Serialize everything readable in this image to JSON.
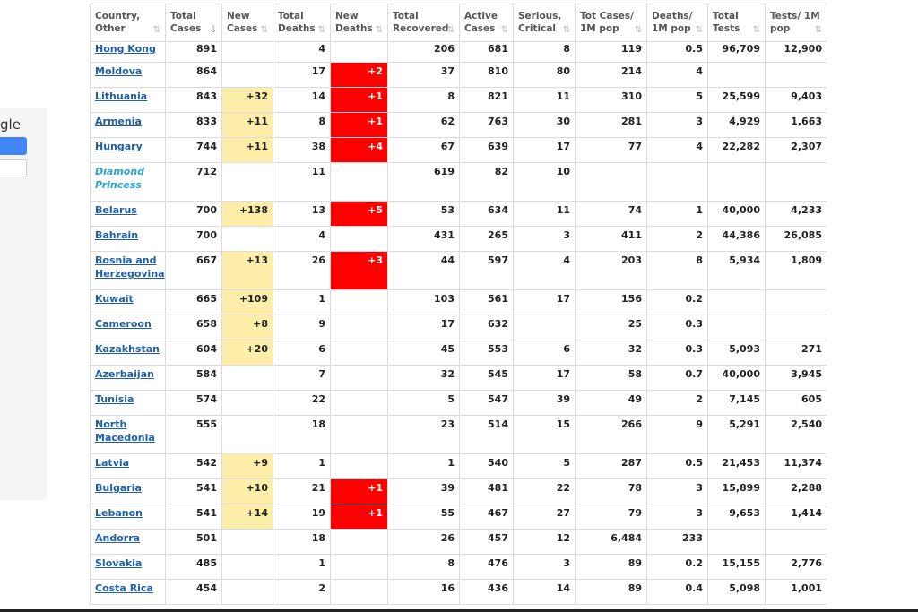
{
  "sidebar": {
    "partial_text": "gle"
  },
  "table": {
    "headers": [
      {
        "label": "Country, Other",
        "sort": "⇅"
      },
      {
        "label": "Total Cases",
        "sort": "⇩"
      },
      {
        "label": "New Cases",
        "sort": "⇅"
      },
      {
        "label": "Total Deaths",
        "sort": "⇅"
      },
      {
        "label": "New Deaths",
        "sort": "⇅"
      },
      {
        "label": "Total Recovered",
        "sort": "⇅"
      },
      {
        "label": "Active Cases",
        "sort": "⇅"
      },
      {
        "label": "Serious, Critical",
        "sort": "⇅"
      },
      {
        "label": "Tot Cases/ 1M pop",
        "sort": "⇅"
      },
      {
        "label": "Deaths/ 1M pop",
        "sort": "⇅"
      },
      {
        "label": "Total Tests",
        "sort": "⇅"
      },
      {
        "label": "Tests/ 1M pop",
        "sort": "⇅"
      }
    ],
    "rows": [
      {
        "country": "Hong Kong",
        "total_cases": "891",
        "new_cases": "",
        "total_deaths": "4",
        "new_deaths": "",
        "total_recovered": "206",
        "active_cases": "681",
        "serious": "8",
        "cases_per_m": "119",
        "deaths_per_m": "0.5",
        "total_tests": "96,709",
        "tests_per_m": "12,900"
      },
      {
        "country": "Moldova",
        "total_cases": "864",
        "new_cases": "",
        "total_deaths": "17",
        "new_deaths": "+2",
        "total_recovered": "37",
        "active_cases": "810",
        "serious": "80",
        "cases_per_m": "214",
        "deaths_per_m": "4",
        "total_tests": "",
        "tests_per_m": ""
      },
      {
        "country": "Lithuania",
        "total_cases": "843",
        "new_cases": "+32",
        "total_deaths": "14",
        "new_deaths": "+1",
        "total_recovered": "8",
        "active_cases": "821",
        "serious": "11",
        "cases_per_m": "310",
        "deaths_per_m": "5",
        "total_tests": "25,599",
        "tests_per_m": "9,403"
      },
      {
        "country": "Armenia",
        "total_cases": "833",
        "new_cases": "+11",
        "total_deaths": "8",
        "new_deaths": "+1",
        "total_recovered": "62",
        "active_cases": "763",
        "serious": "30",
        "cases_per_m": "281",
        "deaths_per_m": "3",
        "total_tests": "4,929",
        "tests_per_m": "1,663"
      },
      {
        "country": "Hungary",
        "total_cases": "744",
        "new_cases": "+11",
        "total_deaths": "38",
        "new_deaths": "+4",
        "total_recovered": "67",
        "active_cases": "639",
        "serious": "17",
        "cases_per_m": "77",
        "deaths_per_m": "4",
        "total_tests": "22,282",
        "tests_per_m": "2,307"
      },
      {
        "country": "Diamond Princess",
        "special": true,
        "total_cases": "712",
        "new_cases": "",
        "total_deaths": "11",
        "new_deaths": "",
        "total_recovered": "619",
        "active_cases": "82",
        "serious": "10",
        "cases_per_m": "",
        "deaths_per_m": "",
        "total_tests": "",
        "tests_per_m": ""
      },
      {
        "country": "Belarus",
        "total_cases": "700",
        "new_cases": "+138",
        "total_deaths": "13",
        "new_deaths": "+5",
        "total_recovered": "53",
        "active_cases": "634",
        "serious": "11",
        "cases_per_m": "74",
        "deaths_per_m": "1",
        "total_tests": "40,000",
        "tests_per_m": "4,233"
      },
      {
        "country": "Bahrain",
        "total_cases": "700",
        "new_cases": "",
        "total_deaths": "4",
        "new_deaths": "",
        "total_recovered": "431",
        "active_cases": "265",
        "serious": "3",
        "cases_per_m": "411",
        "deaths_per_m": "2",
        "total_tests": "44,386",
        "tests_per_m": "26,085"
      },
      {
        "country": "Bosnia and Herzegovina",
        "total_cases": "667",
        "new_cases": "+13",
        "total_deaths": "26",
        "new_deaths": "+3",
        "total_recovered": "44",
        "active_cases": "597",
        "serious": "4",
        "cases_per_m": "203",
        "deaths_per_m": "8",
        "total_tests": "5,934",
        "tests_per_m": "1,809"
      },
      {
        "country": "Kuwait",
        "total_cases": "665",
        "new_cases": "+109",
        "total_deaths": "1",
        "new_deaths": "",
        "total_recovered": "103",
        "active_cases": "561",
        "serious": "17",
        "cases_per_m": "156",
        "deaths_per_m": "0.2",
        "total_tests": "",
        "tests_per_m": ""
      },
      {
        "country": "Cameroon",
        "total_cases": "658",
        "new_cases": "+8",
        "total_deaths": "9",
        "new_deaths": "",
        "total_recovered": "17",
        "active_cases": "632",
        "serious": "",
        "cases_per_m": "25",
        "deaths_per_m": "0.3",
        "total_tests": "",
        "tests_per_m": ""
      },
      {
        "country": "Kazakhstan",
        "total_cases": "604",
        "new_cases": "+20",
        "total_deaths": "6",
        "new_deaths": "",
        "total_recovered": "45",
        "active_cases": "553",
        "serious": "6",
        "cases_per_m": "32",
        "deaths_per_m": "0.3",
        "total_tests": "5,093",
        "tests_per_m": "271"
      },
      {
        "country": "Azerbaijan",
        "total_cases": "584",
        "new_cases": "",
        "total_deaths": "7",
        "new_deaths": "",
        "total_recovered": "32",
        "active_cases": "545",
        "serious": "17",
        "cases_per_m": "58",
        "deaths_per_m": "0.7",
        "total_tests": "40,000",
        "tests_per_m": "3,945"
      },
      {
        "country": "Tunisia",
        "total_cases": "574",
        "new_cases": "",
        "total_deaths": "22",
        "new_deaths": "",
        "total_recovered": "5",
        "active_cases": "547",
        "serious": "39",
        "cases_per_m": "49",
        "deaths_per_m": "2",
        "total_tests": "7,145",
        "tests_per_m": "605"
      },
      {
        "country": "North Macedonia",
        "total_cases": "555",
        "new_cases": "",
        "total_deaths": "18",
        "new_deaths": "",
        "total_recovered": "23",
        "active_cases": "514",
        "serious": "15",
        "cases_per_m": "266",
        "deaths_per_m": "9",
        "total_tests": "5,291",
        "tests_per_m": "2,540"
      },
      {
        "country": "Latvia",
        "total_cases": "542",
        "new_cases": "+9",
        "total_deaths": "1",
        "new_deaths": "",
        "total_recovered": "1",
        "active_cases": "540",
        "serious": "5",
        "cases_per_m": "287",
        "deaths_per_m": "0.5",
        "total_tests": "21,453",
        "tests_per_m": "11,374"
      },
      {
        "country": "Bulgaria",
        "total_cases": "541",
        "new_cases": "+10",
        "total_deaths": "21",
        "new_deaths": "+1",
        "total_recovered": "39",
        "active_cases": "481",
        "serious": "22",
        "cases_per_m": "78",
        "deaths_per_m": "3",
        "total_tests": "15,899",
        "tests_per_m": "2,288"
      },
      {
        "country": "Lebanon",
        "total_cases": "541",
        "new_cases": "+14",
        "total_deaths": "19",
        "new_deaths": "+1",
        "total_recovered": "55",
        "active_cases": "467",
        "serious": "27",
        "cases_per_m": "79",
        "deaths_per_m": "3",
        "total_tests": "9,653",
        "tests_per_m": "1,414"
      },
      {
        "country": "Andorra",
        "total_cases": "501",
        "new_cases": "",
        "total_deaths": "18",
        "new_deaths": "",
        "total_recovered": "26",
        "active_cases": "457",
        "serious": "12",
        "cases_per_m": "6,484",
        "deaths_per_m": "233",
        "total_tests": "",
        "tests_per_m": ""
      },
      {
        "country": "Slovakia",
        "total_cases": "485",
        "new_cases": "",
        "total_deaths": "1",
        "new_deaths": "",
        "total_recovered": "8",
        "active_cases": "476",
        "serious": "3",
        "cases_per_m": "89",
        "deaths_per_m": "0.2",
        "total_tests": "15,155",
        "tests_per_m": "2,776"
      },
      {
        "country": "Costa Rica",
        "total_cases": "454",
        "new_cases": "",
        "total_deaths": "2",
        "new_deaths": "",
        "total_recovered": "16",
        "active_cases": "436",
        "serious": "14",
        "cases_per_m": "89",
        "deaths_per_m": "0.4",
        "total_tests": "5,098",
        "tests_per_m": "1,001"
      }
    ]
  }
}
